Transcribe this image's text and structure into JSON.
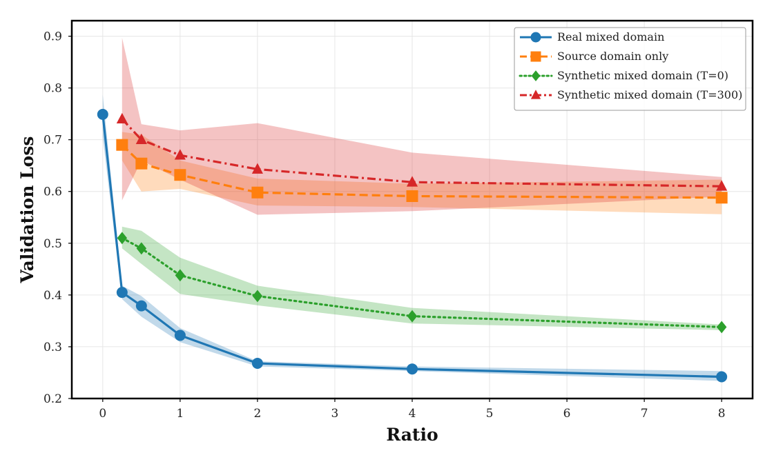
{
  "chart_data": {
    "type": "line",
    "title": "",
    "xlabel": "Ratio",
    "ylabel": "Validation Loss",
    "xlim": [
      -0.4,
      8.4
    ],
    "ylim": [
      0.2,
      0.93
    ],
    "grid": true,
    "legend_position": "top-right",
    "x_ticks": [
      0,
      1,
      2,
      3,
      4,
      5,
      6,
      7,
      8
    ],
    "y_ticks": [
      0.2,
      0.3,
      0.4,
      0.5,
      0.6,
      0.7,
      0.8,
      0.9
    ],
    "x_tick_labels": [
      "0",
      "1",
      "2",
      "3",
      "4",
      "5",
      "6",
      "7",
      "8"
    ],
    "y_tick_labels": [
      "0.2",
      "0.3",
      "0.4",
      "0.5",
      "0.6",
      "0.7",
      "0.8",
      "0.9"
    ],
    "series": [
      {
        "name": "Real mixed domain",
        "color": "#1f77b4",
        "line_style": "solid",
        "marker": "circle",
        "x": [
          0,
          0.25,
          0.5,
          1,
          2,
          4,
          8
        ],
        "values": [
          0.749,
          0.405,
          0.379,
          0.322,
          0.268,
          0.257,
          0.242
        ],
        "lower": [
          0.705,
          0.392,
          0.358,
          0.309,
          0.262,
          0.253,
          0.234
        ],
        "upper": [
          0.787,
          0.418,
          0.398,
          0.336,
          0.272,
          0.262,
          0.253
        ]
      },
      {
        "name": "Source domain only",
        "color": "#ff7f0e",
        "line_style": "dashed",
        "marker": "square",
        "x": [
          0.25,
          0.5,
          1,
          2,
          4,
          8
        ],
        "values": [
          0.69,
          0.654,
          0.632,
          0.598,
          0.591,
          0.588
        ],
        "lower": [
          0.66,
          0.6,
          0.605,
          0.573,
          0.57,
          0.556
        ],
        "upper": [
          0.715,
          0.71,
          0.66,
          0.625,
          0.615,
          0.623
        ]
      },
      {
        "name": "Synthetic mixed domain (T=0)",
        "color": "#2ca02c",
        "line_style": "dotted",
        "marker": "diamond",
        "x": [
          0.25,
          0.5,
          1,
          2,
          4,
          8
        ],
        "values": [
          0.51,
          0.49,
          0.438,
          0.398,
          0.359,
          0.338
        ],
        "lower": [
          0.49,
          0.46,
          0.402,
          0.38,
          0.345,
          0.332
        ],
        "upper": [
          0.532,
          0.524,
          0.472,
          0.418,
          0.375,
          0.343
        ]
      },
      {
        "name": "Synthetic mixed domain (T=300)",
        "color": "#d62728",
        "line_style": "dashdot",
        "marker": "triangle",
        "x": [
          0.25,
          0.5,
          1,
          2,
          4,
          8
        ],
        "values": [
          0.74,
          0.7,
          0.67,
          0.643,
          0.618,
          0.61
        ],
        "lower": [
          0.583,
          0.66,
          0.623,
          0.555,
          0.562,
          0.59
        ],
        "upper": [
          0.897,
          0.73,
          0.718,
          0.732,
          0.675,
          0.628
        ]
      }
    ]
  }
}
